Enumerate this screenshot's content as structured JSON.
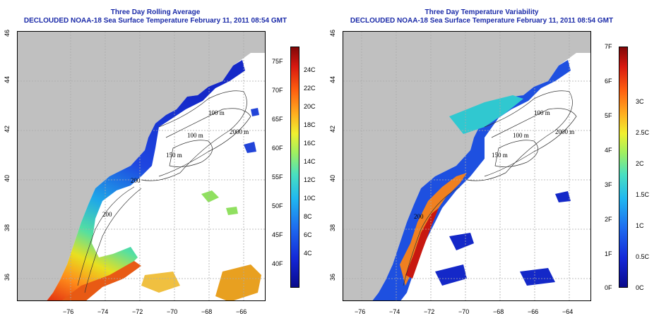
{
  "left": {
    "title": "Three Day Rolling Average",
    "subtitle": "DECLOUDED NOAA-18 Sea Surface Temperature February 11, 2011 08:54 GMT",
    "contours": [
      "100 m",
      "100 m",
      "2000 m",
      "200",
      "200",
      "150 m"
    ],
    "colorbar": {
      "f_labels": [
        "75F",
        "70F",
        "65F",
        "60F",
        "55F",
        "50F",
        "45F",
        "40F"
      ],
      "c_labels": [
        "24C",
        "22C",
        "20C",
        "18C",
        "16C",
        "14C",
        "12C",
        "10C",
        "8C",
        "6C",
        "4C"
      ]
    }
  },
  "right": {
    "title": "Three Day Temperature Variability",
    "subtitle": "DECLOUDED NOAA-18 Sea Surface Temperature February 11, 2011 08:54 GMT",
    "contours": [
      "100 m",
      "100 m",
      "2000 m",
      "150 m",
      "200"
    ],
    "colorbar": {
      "f_labels": [
        "7F",
        "6F",
        "5F",
        "4F",
        "3F",
        "2F",
        "1F",
        "0F"
      ],
      "c_labels": [
        "3C",
        "2.5C",
        "2C",
        "1.5C",
        "1C",
        "0.5C",
        "0C"
      ]
    }
  },
  "axes": {
    "x_ticks": [
      "−76",
      "−74",
      "−72",
      "−70",
      "−68",
      "−66",
      "−64"
    ],
    "y_ticks": [
      "36",
      "38",
      "40",
      "42",
      "44",
      "46"
    ]
  },
  "colors": {
    "land": "#c0c0c0",
    "title": "#1a2aa8"
  }
}
